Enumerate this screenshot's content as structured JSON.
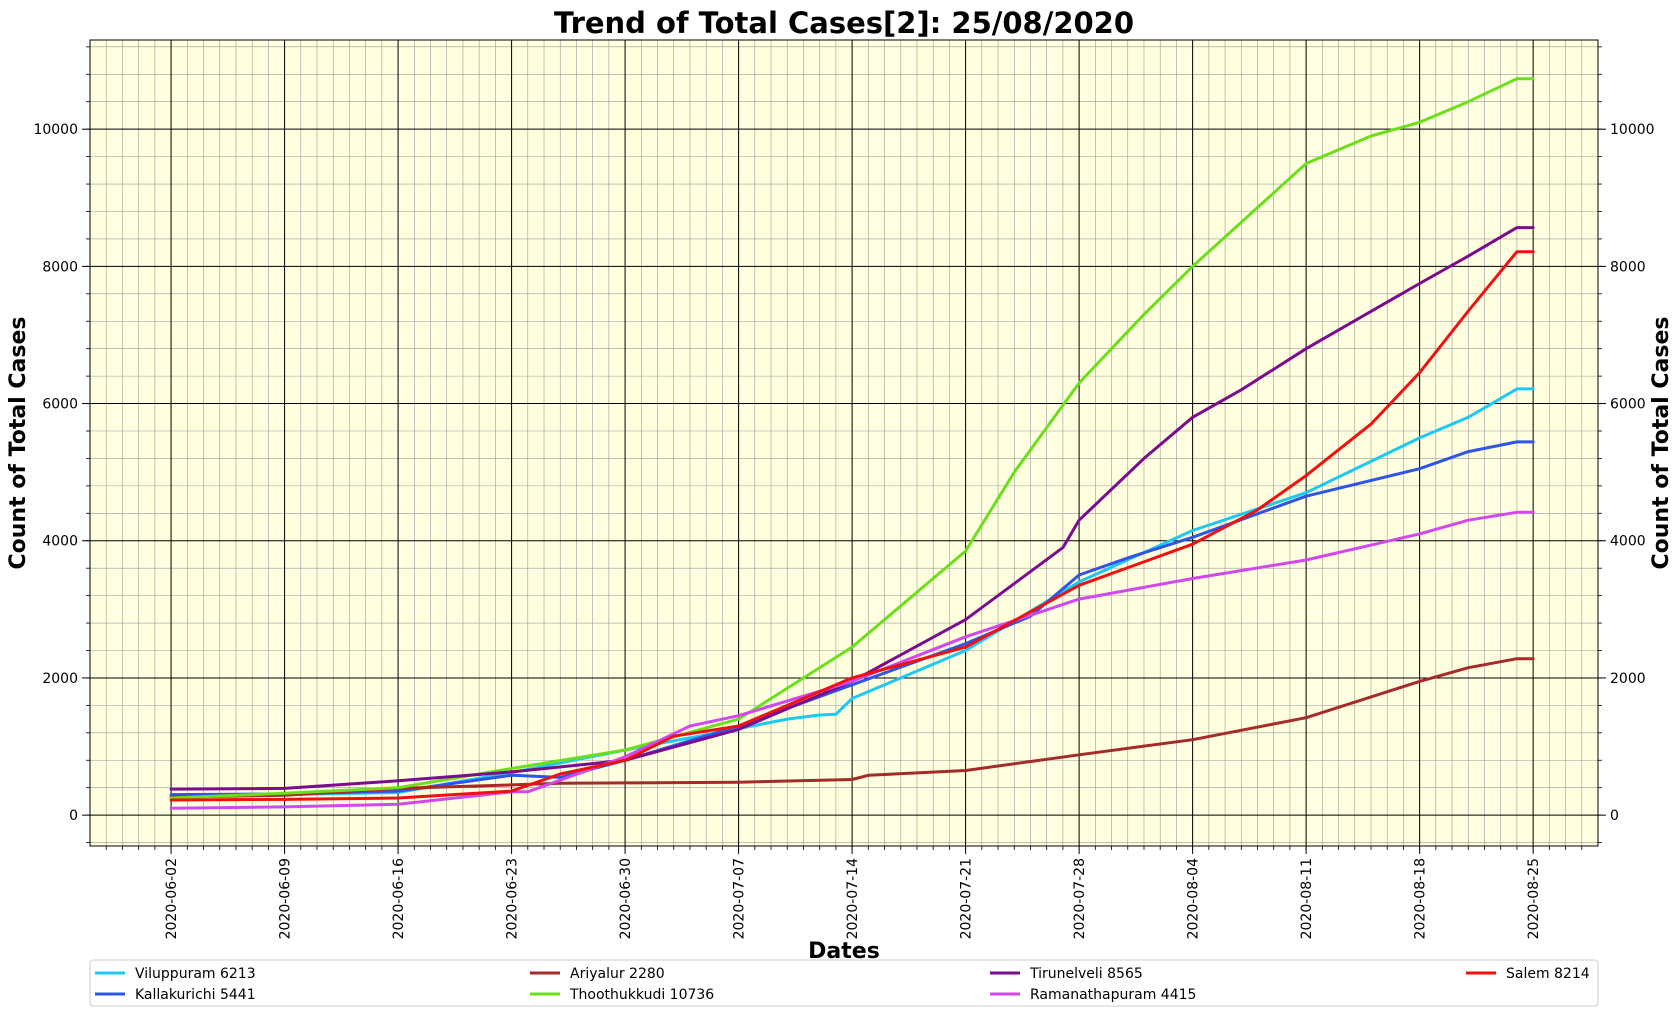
{
  "chart_data": {
    "type": "line",
    "title": "Trend of Total Cases[2]: 25/08/2020",
    "xlabel": "Dates",
    "ylabel": "Count of Total Cases",
    "ylabel_right": "Count of Total Cases",
    "x_start": "2020-06-02",
    "x_end": "2020-08-25",
    "x_ticks": [
      "2020-06-02",
      "2020-06-09",
      "2020-06-16",
      "2020-06-23",
      "2020-06-30",
      "2020-07-07",
      "2020-07-14",
      "2020-07-21",
      "2020-07-28",
      "2020-08-04",
      "2020-08-11",
      "2020-08-18",
      "2020-08-25"
    ],
    "y_ticks": [
      0,
      2000,
      4000,
      6000,
      8000,
      10000
    ],
    "ylim": [
      -450,
      11300
    ],
    "xlim": [
      "2020-05-28",
      "2020-08-29"
    ],
    "grid": true,
    "background": "#ffffe0",
    "legend_placement": "below",
    "series": [
      {
        "name": "Viluppuram 6213",
        "color": "#1ec8f5",
        "points": [
          [
            "2020-06-02",
            280
          ],
          [
            "2020-06-09",
            300
          ],
          [
            "2020-06-16",
            330
          ],
          [
            "2020-06-23",
            620
          ],
          [
            "2020-06-30",
            950
          ],
          [
            "2020-07-07",
            1260
          ],
          [
            "2020-07-10",
            1400
          ],
          [
            "2020-07-12",
            1460
          ],
          [
            "2020-07-13",
            1470
          ],
          [
            "2020-07-14",
            1700
          ],
          [
            "2020-07-21",
            2400
          ],
          [
            "2020-07-28",
            3400
          ],
          [
            "2020-08-04",
            4150
          ],
          [
            "2020-08-11",
            4700
          ],
          [
            "2020-08-18",
            5500
          ],
          [
            "2020-08-21",
            5800
          ],
          [
            "2020-08-24",
            6213
          ],
          [
            "2020-08-25",
            6213
          ]
        ]
      },
      {
        "name": "Kallakurichi 5441",
        "color": "#2f55e8",
        "points": [
          [
            "2020-06-02",
            300
          ],
          [
            "2020-06-09",
            310
          ],
          [
            "2020-06-16",
            350
          ],
          [
            "2020-06-23",
            580
          ],
          [
            "2020-06-26",
            550
          ],
          [
            "2020-06-30",
            800
          ],
          [
            "2020-07-07",
            1300
          ],
          [
            "2020-07-14",
            1900
          ],
          [
            "2020-07-21",
            2500
          ],
          [
            "2020-07-25",
            2900
          ],
          [
            "2020-07-28",
            3500
          ],
          [
            "2020-07-31",
            3750
          ],
          [
            "2020-08-04",
            4050
          ],
          [
            "2020-08-11",
            4650
          ],
          [
            "2020-08-18",
            5050
          ],
          [
            "2020-08-21",
            5300
          ],
          [
            "2020-08-24",
            5441
          ],
          [
            "2020-08-25",
            5441
          ]
        ]
      },
      {
        "name": "Ariyalur 2280",
        "color": "#a52a2a",
        "points": [
          [
            "2020-06-02",
            260
          ],
          [
            "2020-06-09",
            290
          ],
          [
            "2020-06-16",
            390
          ],
          [
            "2020-06-23",
            440
          ],
          [
            "2020-06-26",
            465
          ],
          [
            "2020-06-30",
            470
          ],
          [
            "2020-07-07",
            480
          ],
          [
            "2020-07-14",
            520
          ],
          [
            "2020-07-15",
            580
          ],
          [
            "2020-07-21",
            650
          ],
          [
            "2020-07-28",
            880
          ],
          [
            "2020-08-04",
            1100
          ],
          [
            "2020-08-11",
            1420
          ],
          [
            "2020-08-18",
            1950
          ],
          [
            "2020-08-21",
            2150
          ],
          [
            "2020-08-24",
            2280
          ],
          [
            "2020-08-25",
            2280
          ]
        ]
      },
      {
        "name": "Thoothukkudi 10736",
        "color": "#6be01a",
        "points": [
          [
            "2020-06-02",
            250
          ],
          [
            "2020-06-09",
            320
          ],
          [
            "2020-06-16",
            400
          ],
          [
            "2020-06-23",
            680
          ],
          [
            "2020-06-30",
            950
          ],
          [
            "2020-07-07",
            1400
          ],
          [
            "2020-07-14",
            2450
          ],
          [
            "2020-07-21",
            3850
          ],
          [
            "2020-07-24",
            5000
          ],
          [
            "2020-07-28",
            6300
          ],
          [
            "2020-08-01",
            7300
          ],
          [
            "2020-08-04",
            8000
          ],
          [
            "2020-08-11",
            9500
          ],
          [
            "2020-08-15",
            9900
          ],
          [
            "2020-08-18",
            10100
          ],
          [
            "2020-08-21",
            10400
          ],
          [
            "2020-08-24",
            10736
          ],
          [
            "2020-08-25",
            10736
          ]
        ]
      },
      {
        "name": "Tirunelveli 8565",
        "color": "#7b0b8f",
        "points": [
          [
            "2020-06-02",
            380
          ],
          [
            "2020-06-09",
            390
          ],
          [
            "2020-06-16",
            500
          ],
          [
            "2020-06-23",
            630
          ],
          [
            "2020-06-30",
            800
          ],
          [
            "2020-07-07",
            1250
          ],
          [
            "2020-07-14",
            1950
          ],
          [
            "2020-07-21",
            2850
          ],
          [
            "2020-07-27",
            3900
          ],
          [
            "2020-07-28",
            4300
          ],
          [
            "2020-08-01",
            5200
          ],
          [
            "2020-08-04",
            5800
          ],
          [
            "2020-08-07",
            6200
          ],
          [
            "2020-08-11",
            6800
          ],
          [
            "2020-08-18",
            7750
          ],
          [
            "2020-08-21",
            8150
          ],
          [
            "2020-08-24",
            8565
          ],
          [
            "2020-08-25",
            8565
          ]
        ]
      },
      {
        "name": "Ramanathapuram 4415",
        "color": "#d247f0",
        "points": [
          [
            "2020-06-02",
            100
          ],
          [
            "2020-06-09",
            120
          ],
          [
            "2020-06-16",
            160
          ],
          [
            "2020-06-23",
            340
          ],
          [
            "2020-06-24",
            340
          ],
          [
            "2020-06-30",
            850
          ],
          [
            "2020-07-04",
            1300
          ],
          [
            "2020-07-07",
            1450
          ],
          [
            "2020-07-14",
            1950
          ],
          [
            "2020-07-21",
            2600
          ],
          [
            "2020-07-28",
            3150
          ],
          [
            "2020-08-04",
            3450
          ],
          [
            "2020-08-11",
            3720
          ],
          [
            "2020-08-18",
            4100
          ],
          [
            "2020-08-21",
            4300
          ],
          [
            "2020-08-24",
            4415
          ],
          [
            "2020-08-25",
            4415
          ]
        ]
      },
      {
        "name": "Salem 8214",
        "color": "#f01010",
        "points": [
          [
            "2020-06-02",
            220
          ],
          [
            "2020-06-09",
            230
          ],
          [
            "2020-06-16",
            250
          ],
          [
            "2020-06-23",
            350
          ],
          [
            "2020-06-26",
            600
          ],
          [
            "2020-06-30",
            800
          ],
          [
            "2020-07-03",
            1150
          ],
          [
            "2020-07-07",
            1300
          ],
          [
            "2020-07-14",
            2000
          ],
          [
            "2020-07-21",
            2450
          ],
          [
            "2020-07-28",
            3350
          ],
          [
            "2020-08-04",
            3950
          ],
          [
            "2020-08-08",
            4450
          ],
          [
            "2020-08-11",
            4950
          ],
          [
            "2020-08-15",
            5700
          ],
          [
            "2020-08-18",
            6450
          ],
          [
            "2020-08-21",
            7350
          ],
          [
            "2020-08-24",
            8214
          ],
          [
            "2020-08-25",
            8214
          ]
        ]
      }
    ]
  }
}
